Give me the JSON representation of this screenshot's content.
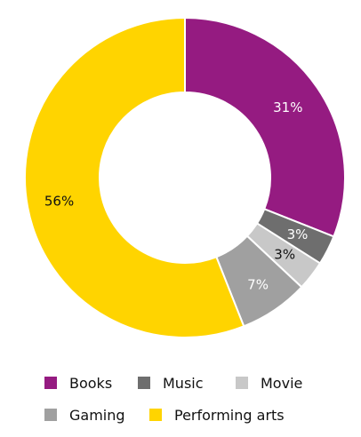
{
  "colors": {
    "books": "#951B81",
    "music": "#6E6E6E",
    "movie": "#C8C8C8",
    "gaming": "#A0A0A0",
    "performing_arts": "#FFD400"
  },
  "chart_data": {
    "type": "pie",
    "title": "",
    "donut": true,
    "legend_position": "bottom",
    "categories": [
      "Books",
      "Music",
      "Movie",
      "Gaming",
      "Performing arts"
    ],
    "values": [
      31,
      3,
      3,
      7,
      56
    ],
    "data_labels": [
      "31%",
      "3%",
      "3%",
      "7%",
      "56%"
    ],
    "label_colors": [
      "#ffffff",
      "#ffffff",
      "#111111",
      "#ffffff",
      "#111111"
    ]
  },
  "legend": {
    "items": [
      {
        "label": "Books"
      },
      {
        "label": "Music"
      },
      {
        "label": "Movie"
      },
      {
        "label": "Gaming"
      },
      {
        "label": "Performing arts"
      }
    ]
  }
}
